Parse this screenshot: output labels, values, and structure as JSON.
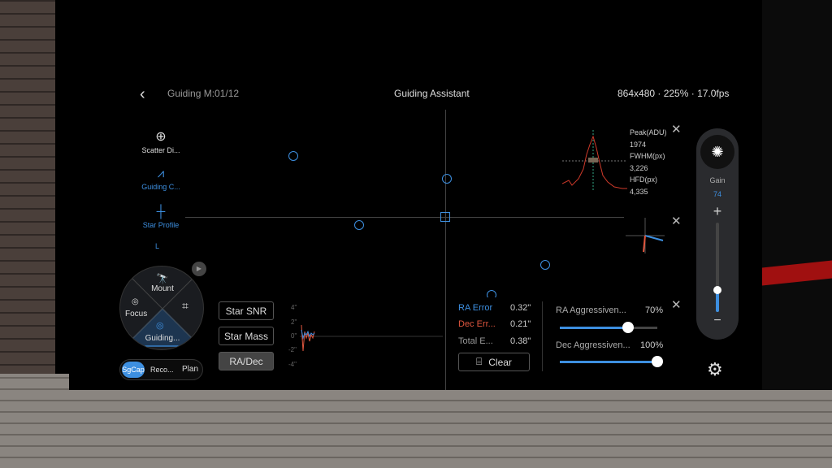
{
  "header": {
    "back_icon": "chevron-left",
    "subtitle": "Guiding M:01/12",
    "title": "Guiding Assistant",
    "info": "864x480 · 225% · 17.0fps"
  },
  "sidebar": {
    "items": [
      {
        "label": "Scatter Di...",
        "icon": "crosshair-icon",
        "active": false
      },
      {
        "label": "Guiding C...",
        "icon": "chart-icon",
        "active": true
      },
      {
        "label": "Star Profile",
        "icon": "star-profile-icon",
        "active": true
      }
    ],
    "extra": "L"
  },
  "wheel": {
    "mount": "Mount",
    "focus": "Focus",
    "guiding": "Guiding...",
    "accent": "#3d8fe0"
  },
  "modes": [
    "SgCap",
    "Reco...",
    "Plan"
  ],
  "chart_buttons": [
    "Star SNR",
    "Star Mass",
    "RA/Dec"
  ],
  "mini_chart": {
    "yticks": [
      "4\"",
      "2\"",
      "0\"",
      "-2\"",
      "-4\""
    ]
  },
  "star_profile": {
    "peak_label": "Peak(ADU)",
    "peak": "1974",
    "fwhm_label": "FWHM(px)",
    "fwhm": "3,226",
    "hfd_label": "HFD(px)",
    "hfd": "4,335"
  },
  "errors": {
    "ra_label": "RA Error",
    "ra": "0.32\"",
    "dec_label": "Dec Err...",
    "dec": "0.21\"",
    "total_label": "Total E...",
    "total": "0.38\"",
    "clear": "Clear"
  },
  "aggressiveness": {
    "ra_label": "RA Aggressiven...",
    "ra": "70%",
    "ra_value": 70,
    "dec_label": "Dec Aggressiven...",
    "dec": "100%",
    "dec_value": 100
  },
  "gain": {
    "label": "Gain",
    "value": "74",
    "level": 0.25
  },
  "colors": {
    "ra": "#3d8fe0",
    "dec": "#e0563e"
  }
}
